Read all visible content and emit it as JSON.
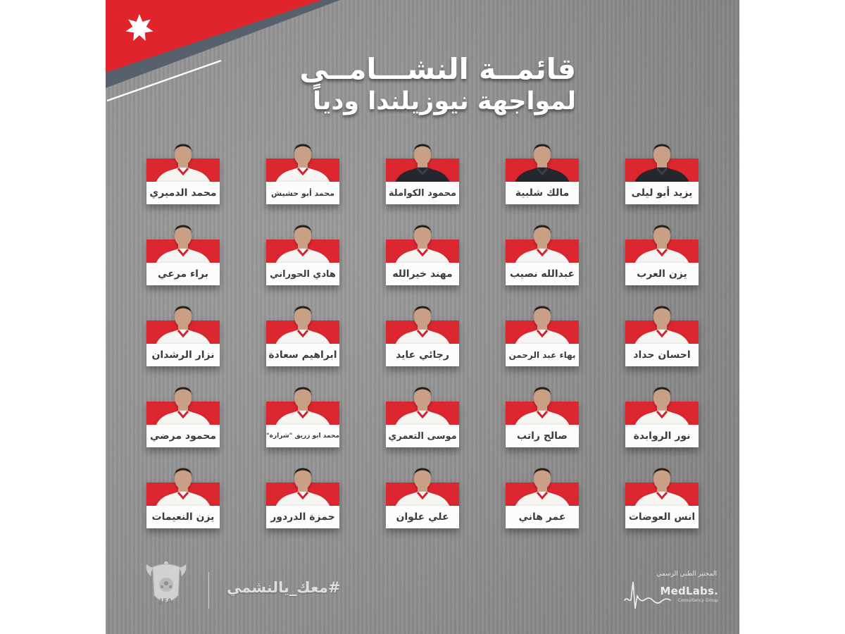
{
  "header": {
    "title_line1": "قائمــة النشـــامــى",
    "title_line2": "لمواجهة نيوزيلندا ودياً"
  },
  "players": {
    "rows": [
      [
        {
          "name": "محمد الدميري",
          "kit": "white"
        },
        {
          "name": "محمد أبو حشيش",
          "kit": "white"
        },
        {
          "name": "محمود الكواملة",
          "kit": "dark"
        },
        {
          "name": "مالك شلبية",
          "kit": "dark"
        },
        {
          "name": "يزيد أبو ليلى",
          "kit": "dark"
        }
      ],
      [
        {
          "name": "براء مرعي",
          "kit": "white"
        },
        {
          "name": "هادي الحوراني",
          "kit": "white"
        },
        {
          "name": "مهند خيرالله",
          "kit": "white"
        },
        {
          "name": "عبدالله نصيب",
          "kit": "white"
        },
        {
          "name": "يزن العرب",
          "kit": "white"
        }
      ],
      [
        {
          "name": "نزار الرشدان",
          "kit": "white"
        },
        {
          "name": "ابراهيم سعادة",
          "kit": "white"
        },
        {
          "name": "رجائي عايد",
          "kit": "white"
        },
        {
          "name": "بهاء عبد الرحمن",
          "kit": "white"
        },
        {
          "name": "احسان حداد",
          "kit": "white"
        }
      ],
      [
        {
          "name": "محمود مرضي",
          "kit": "white"
        },
        {
          "name": "محمد ابو زريق \"شرارة\"",
          "kit": "white"
        },
        {
          "name": "موسى التعمري",
          "kit": "white"
        },
        {
          "name": "صالح راتب",
          "kit": "white"
        },
        {
          "name": "نور الروابدة",
          "kit": "white"
        }
      ],
      [
        {
          "name": "يزن النعيمات",
          "kit": "white"
        },
        {
          "name": "حمزة الدردور",
          "kit": "white"
        },
        {
          "name": "علي علوان",
          "kit": "white"
        },
        {
          "name": "عمر هاني",
          "kit": "white"
        },
        {
          "name": "انس العوضات",
          "kit": "white"
        }
      ]
    ]
  },
  "footer": {
    "jfa_label": "JFA",
    "hashtag": "#معك_يالنشمي",
    "sponsor_arabic": "المختبر الطبي الرسمي",
    "sponsor_name": "MedLabs.",
    "sponsor_sub": "Consultancy Group"
  },
  "colors": {
    "banner_red": "#e0242c",
    "banner_slate": "#57616d",
    "background_gray": "#8c8c8c",
    "card_red": "#dd2730",
    "name_text": "#3c3c3c"
  }
}
